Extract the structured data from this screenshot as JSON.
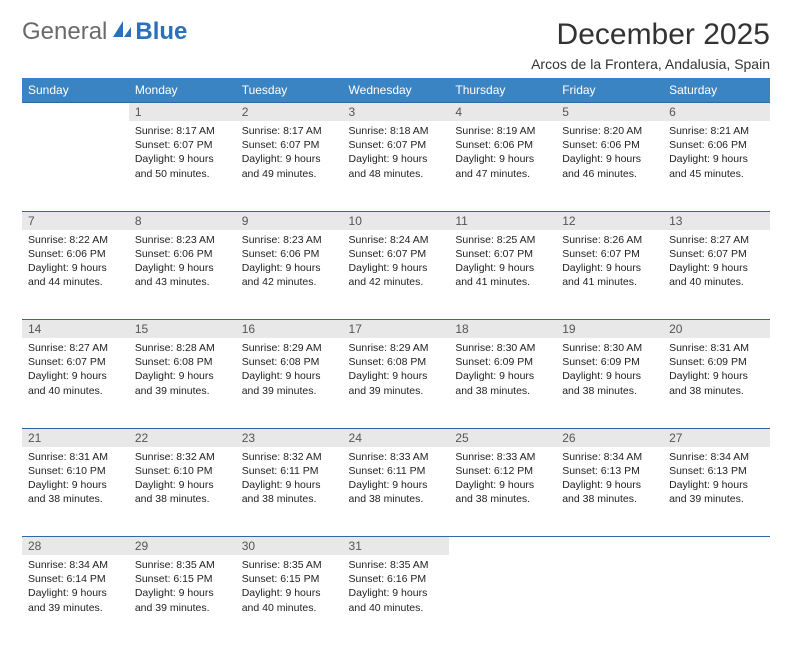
{
  "logo": {
    "part1": "General",
    "part2": "Blue"
  },
  "title": "December 2025",
  "subtitle": "Arcos de la Frontera, Andalusia, Spain",
  "colors": {
    "header_bg": "#3b84c4",
    "day_bg": "#e8e8e8",
    "divider": "#2b6aa6",
    "logo_blue": "#2b70b8"
  },
  "weekdays": [
    "Sunday",
    "Monday",
    "Tuesday",
    "Wednesday",
    "Thursday",
    "Friday",
    "Saturday"
  ],
  "weeks": [
    [
      null,
      {
        "n": "1",
        "sunrise": "Sunrise: 8:17 AM",
        "sunset": "Sunset: 6:07 PM",
        "daylight": "Daylight: 9 hours and 50 minutes."
      },
      {
        "n": "2",
        "sunrise": "Sunrise: 8:17 AM",
        "sunset": "Sunset: 6:07 PM",
        "daylight": "Daylight: 9 hours and 49 minutes."
      },
      {
        "n": "3",
        "sunrise": "Sunrise: 8:18 AM",
        "sunset": "Sunset: 6:07 PM",
        "daylight": "Daylight: 9 hours and 48 minutes."
      },
      {
        "n": "4",
        "sunrise": "Sunrise: 8:19 AM",
        "sunset": "Sunset: 6:06 PM",
        "daylight": "Daylight: 9 hours and 47 minutes."
      },
      {
        "n": "5",
        "sunrise": "Sunrise: 8:20 AM",
        "sunset": "Sunset: 6:06 PM",
        "daylight": "Daylight: 9 hours and 46 minutes."
      },
      {
        "n": "6",
        "sunrise": "Sunrise: 8:21 AM",
        "sunset": "Sunset: 6:06 PM",
        "daylight": "Daylight: 9 hours and 45 minutes."
      }
    ],
    [
      {
        "n": "7",
        "sunrise": "Sunrise: 8:22 AM",
        "sunset": "Sunset: 6:06 PM",
        "daylight": "Daylight: 9 hours and 44 minutes."
      },
      {
        "n": "8",
        "sunrise": "Sunrise: 8:23 AM",
        "sunset": "Sunset: 6:06 PM",
        "daylight": "Daylight: 9 hours and 43 minutes."
      },
      {
        "n": "9",
        "sunrise": "Sunrise: 8:23 AM",
        "sunset": "Sunset: 6:06 PM",
        "daylight": "Daylight: 9 hours and 42 minutes."
      },
      {
        "n": "10",
        "sunrise": "Sunrise: 8:24 AM",
        "sunset": "Sunset: 6:07 PM",
        "daylight": "Daylight: 9 hours and 42 minutes."
      },
      {
        "n": "11",
        "sunrise": "Sunrise: 8:25 AM",
        "sunset": "Sunset: 6:07 PM",
        "daylight": "Daylight: 9 hours and 41 minutes."
      },
      {
        "n": "12",
        "sunrise": "Sunrise: 8:26 AM",
        "sunset": "Sunset: 6:07 PM",
        "daylight": "Daylight: 9 hours and 41 minutes."
      },
      {
        "n": "13",
        "sunrise": "Sunrise: 8:27 AM",
        "sunset": "Sunset: 6:07 PM",
        "daylight": "Daylight: 9 hours and 40 minutes."
      }
    ],
    [
      {
        "n": "14",
        "sunrise": "Sunrise: 8:27 AM",
        "sunset": "Sunset: 6:07 PM",
        "daylight": "Daylight: 9 hours and 40 minutes."
      },
      {
        "n": "15",
        "sunrise": "Sunrise: 8:28 AM",
        "sunset": "Sunset: 6:08 PM",
        "daylight": "Daylight: 9 hours and 39 minutes."
      },
      {
        "n": "16",
        "sunrise": "Sunrise: 8:29 AM",
        "sunset": "Sunset: 6:08 PM",
        "daylight": "Daylight: 9 hours and 39 minutes."
      },
      {
        "n": "17",
        "sunrise": "Sunrise: 8:29 AM",
        "sunset": "Sunset: 6:08 PM",
        "daylight": "Daylight: 9 hours and 39 minutes."
      },
      {
        "n": "18",
        "sunrise": "Sunrise: 8:30 AM",
        "sunset": "Sunset: 6:09 PM",
        "daylight": "Daylight: 9 hours and 38 minutes."
      },
      {
        "n": "19",
        "sunrise": "Sunrise: 8:30 AM",
        "sunset": "Sunset: 6:09 PM",
        "daylight": "Daylight: 9 hours and 38 minutes."
      },
      {
        "n": "20",
        "sunrise": "Sunrise: 8:31 AM",
        "sunset": "Sunset: 6:09 PM",
        "daylight": "Daylight: 9 hours and 38 minutes."
      }
    ],
    [
      {
        "n": "21",
        "sunrise": "Sunrise: 8:31 AM",
        "sunset": "Sunset: 6:10 PM",
        "daylight": "Daylight: 9 hours and 38 minutes."
      },
      {
        "n": "22",
        "sunrise": "Sunrise: 8:32 AM",
        "sunset": "Sunset: 6:10 PM",
        "daylight": "Daylight: 9 hours and 38 minutes."
      },
      {
        "n": "23",
        "sunrise": "Sunrise: 8:32 AM",
        "sunset": "Sunset: 6:11 PM",
        "daylight": "Daylight: 9 hours and 38 minutes."
      },
      {
        "n": "24",
        "sunrise": "Sunrise: 8:33 AM",
        "sunset": "Sunset: 6:11 PM",
        "daylight": "Daylight: 9 hours and 38 minutes."
      },
      {
        "n": "25",
        "sunrise": "Sunrise: 8:33 AM",
        "sunset": "Sunset: 6:12 PM",
        "daylight": "Daylight: 9 hours and 38 minutes."
      },
      {
        "n": "26",
        "sunrise": "Sunrise: 8:34 AM",
        "sunset": "Sunset: 6:13 PM",
        "daylight": "Daylight: 9 hours and 38 minutes."
      },
      {
        "n": "27",
        "sunrise": "Sunrise: 8:34 AM",
        "sunset": "Sunset: 6:13 PM",
        "daylight": "Daylight: 9 hours and 39 minutes."
      }
    ],
    [
      {
        "n": "28",
        "sunrise": "Sunrise: 8:34 AM",
        "sunset": "Sunset: 6:14 PM",
        "daylight": "Daylight: 9 hours and 39 minutes."
      },
      {
        "n": "29",
        "sunrise": "Sunrise: 8:35 AM",
        "sunset": "Sunset: 6:15 PM",
        "daylight": "Daylight: 9 hours and 39 minutes."
      },
      {
        "n": "30",
        "sunrise": "Sunrise: 8:35 AM",
        "sunset": "Sunset: 6:15 PM",
        "daylight": "Daylight: 9 hours and 40 minutes."
      },
      {
        "n": "31",
        "sunrise": "Sunrise: 8:35 AM",
        "sunset": "Sunset: 6:16 PM",
        "daylight": "Daylight: 9 hours and 40 minutes."
      },
      null,
      null,
      null
    ]
  ]
}
